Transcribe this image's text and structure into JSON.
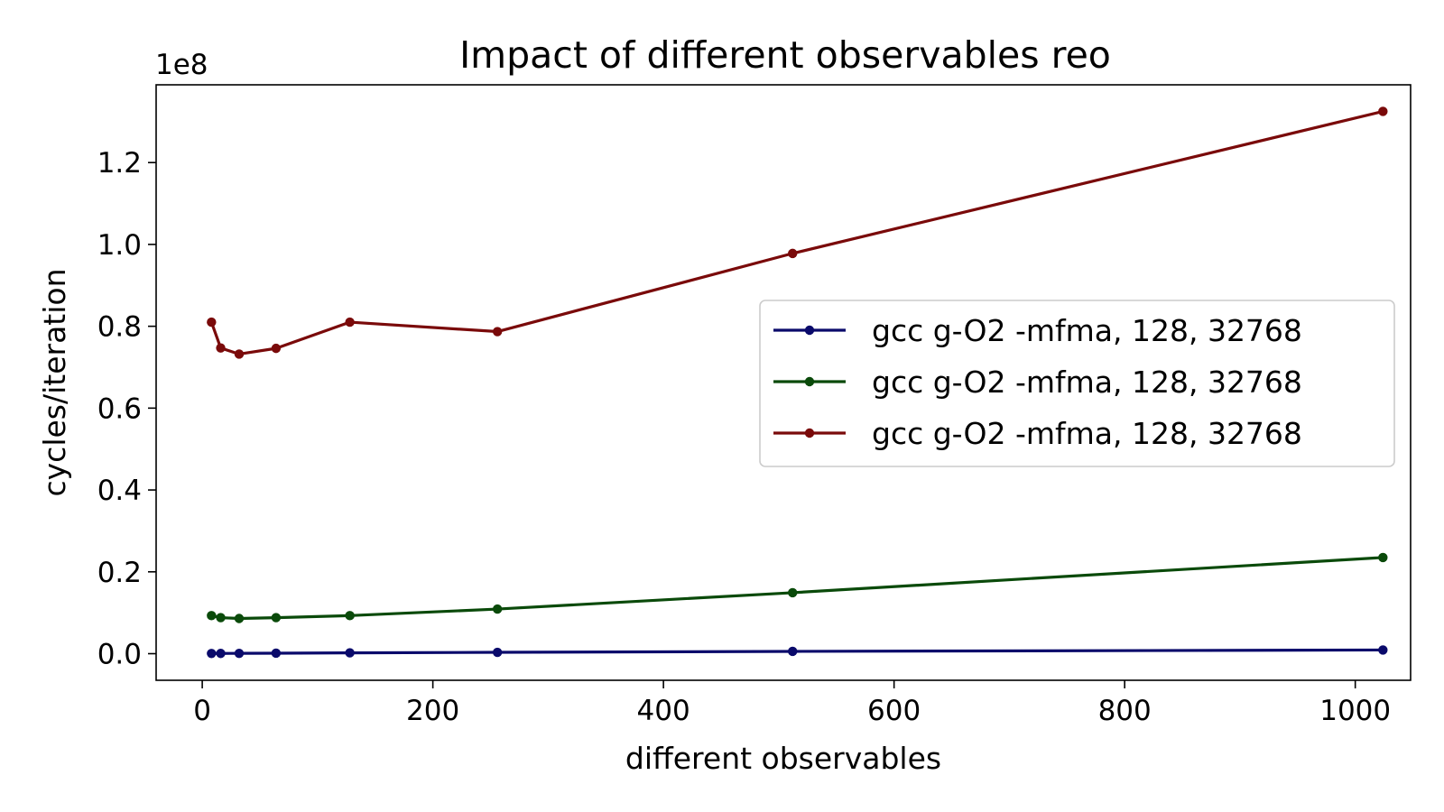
{
  "chart_data": {
    "type": "line",
    "title": "Impact of different observables reo",
    "xlabel": "different observables",
    "ylabel": "cycles/iteration",
    "y_multiplier_label": "1e8",
    "xlim": [
      -40,
      1048
    ],
    "ylim": [
      -6500000,
      139000000
    ],
    "x_ticks": [
      0,
      200,
      400,
      600,
      800,
      1000
    ],
    "x_tick_labels": [
      "0",
      "200",
      "400",
      "600",
      "800",
      "1000"
    ],
    "y_ticks": [
      0,
      20000000,
      40000000,
      60000000,
      80000000,
      100000000,
      120000000
    ],
    "y_tick_labels": [
      "0.0",
      "0.2",
      "0.4",
      "0.6",
      "0.8",
      "1.0",
      "1.2"
    ],
    "grid": false,
    "legend_position": "center-right",
    "x": [
      8,
      16,
      32,
      64,
      128,
      256,
      512,
      1024
    ],
    "series": [
      {
        "name": "gcc g-O2 -mfma, 128, 32768",
        "color": "#0a0a6b",
        "values": [
          50000,
          60000,
          80000,
          120000,
          200000,
          330000,
          560000,
          900000
        ]
      },
      {
        "name": "gcc g-O2 -mfma, 128, 32768",
        "color": "#0a4a0a",
        "values": [
          9300000,
          8800000,
          8600000,
          8800000,
          9300000,
          10900000,
          14900000,
          23500000
        ]
      },
      {
        "name": "gcc g-O2 -mfma, 128, 32768",
        "color": "#7a0a0a",
        "values": [
          81000000,
          74700000,
          73200000,
          74600000,
          81000000,
          78700000,
          97800000,
          132500000
        ]
      }
    ]
  }
}
